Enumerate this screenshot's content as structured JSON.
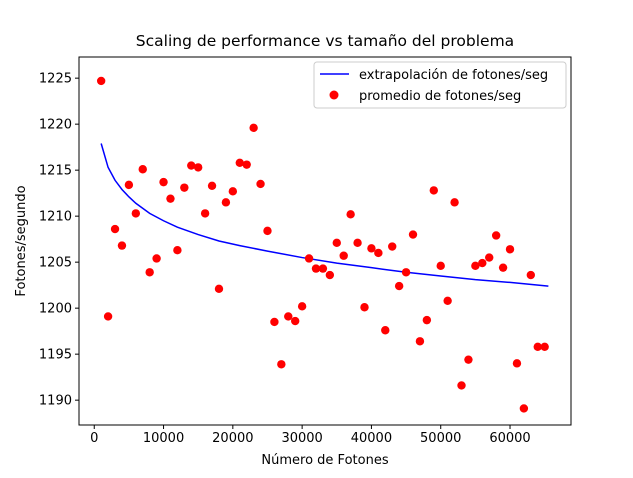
{
  "chart_data": {
    "type": "scatter",
    "title": "Scaling de performance vs tamaño del problema",
    "xlabel": "Número de Fotones",
    "ylabel": "Fotones/segundo",
    "xlim": [
      -2200,
      68800
    ],
    "ylim": [
      1187.3,
      1227.3
    ],
    "xticks": [
      0,
      10000,
      20000,
      30000,
      40000,
      50000,
      60000
    ],
    "yticks": [
      1190,
      1195,
      1200,
      1205,
      1210,
      1215,
      1220,
      1225
    ],
    "grid": false,
    "legend_position": "top-right",
    "series": [
      {
        "name": "extrapolación de fotones/seg",
        "kind": "line",
        "color": "#0000ff",
        "x": [
          1000,
          2000,
          3000,
          4000,
          5000,
          6000,
          8000,
          10000,
          12000,
          15000,
          18000,
          21000,
          25000,
          30000,
          35000,
          40000,
          45000,
          50000,
          55000,
          60000,
          65536
        ],
        "y": [
          1217.9,
          1215.3,
          1213.9,
          1212.9,
          1212.1,
          1211.4,
          1210.3,
          1209.5,
          1208.8,
          1208.0,
          1207.3,
          1206.8,
          1206.2,
          1205.5,
          1204.9,
          1204.4,
          1203.9,
          1203.5,
          1203.1,
          1202.8,
          1202.4
        ]
      },
      {
        "name": "promedio de fotones/seg",
        "kind": "scatter",
        "color": "#ff0000",
        "x": [
          1000,
          2000,
          3000,
          4000,
          5000,
          6000,
          7000,
          8000,
          9000,
          10000,
          11000,
          12000,
          13000,
          14000,
          15000,
          16000,
          17000,
          18000,
          19000,
          20000,
          21000,
          22000,
          23000,
          24000,
          25000,
          26000,
          27000,
          28000,
          29000,
          30000,
          31000,
          32000,
          33000,
          34000,
          35000,
          36000,
          37000,
          38000,
          39000,
          40000,
          41000,
          42000,
          43000,
          44000,
          45000,
          46000,
          47000,
          48000,
          49000,
          50000,
          51000,
          52000,
          53000,
          54000,
          55000,
          56000,
          57000,
          58000,
          59000,
          60000,
          61000,
          62000,
          63000,
          64000,
          65000
        ],
        "y": [
          1224.7,
          1199.1,
          1208.6,
          1206.8,
          1213.4,
          1210.3,
          1215.1,
          1203.9,
          1205.4,
          1213.7,
          1211.9,
          1206.3,
          1213.1,
          1215.5,
          1215.3,
          1210.3,
          1213.3,
          1202.1,
          1211.5,
          1212.7,
          1215.8,
          1215.6,
          1219.6,
          1213.5,
          1208.4,
          1198.5,
          1193.9,
          1199.1,
          1198.6,
          1200.2,
          1205.4,
          1204.3,
          1204.3,
          1203.6,
          1207.1,
          1205.7,
          1210.2,
          1207.1,
          1200.1,
          1206.5,
          1206.0,
          1197.6,
          1206.7,
          1202.4,
          1203.9,
          1208.0,
          1196.4,
          1198.7,
          1212.8,
          1204.6,
          1200.8,
          1211.5,
          1191.6,
          1194.4,
          1204.6,
          1204.9,
          1205.5,
          1207.9,
          1204.4,
          1206.4,
          1194.0,
          1189.1,
          1203.6,
          1195.8,
          1195.8
        ]
      }
    ]
  }
}
